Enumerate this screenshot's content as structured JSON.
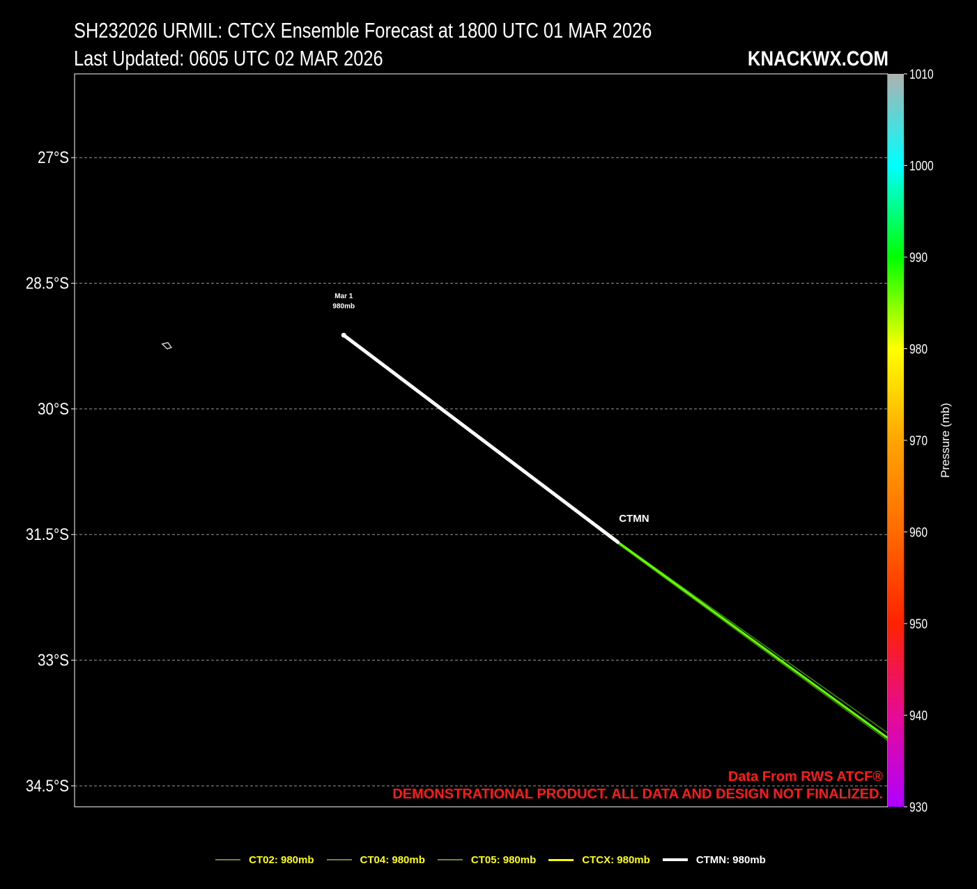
{
  "header": {
    "title_line1": "SH232026 URMIL: CTCX Ensemble Forecast at 1800 UTC 01 MAR 2026",
    "title_line2": "Last Updated: 0605 UTC 02 MAR 2026",
    "brand": "KNACKWX.COM"
  },
  "chart_data": {
    "type": "line",
    "y_axis": {
      "range": [
        -26.0,
        -34.75
      ],
      "ticks": [
        -27,
        -28.5,
        -30,
        -31.5,
        -33,
        -34.5
      ],
      "tick_labels": [
        "27°S",
        "28.5°S",
        "30°S",
        "31.5°S",
        "33°S",
        "34.5°S"
      ],
      "grid": true
    },
    "x_axis": {
      "range": [
        0,
        1
      ],
      "ticks": []
    },
    "colorbar": {
      "label": "Pressure (mb)",
      "range": [
        930,
        1010
      ],
      "ticks": [
        930,
        940,
        950,
        960,
        970,
        980,
        990,
        1000,
        1010
      ],
      "colors": [
        {
          "v": 930,
          "c": "#b000ff"
        },
        {
          "v": 940,
          "c": "#e60a96"
        },
        {
          "v": 950,
          "c": "#ff2200"
        },
        {
          "v": 960,
          "c": "#ff6a00"
        },
        {
          "v": 970,
          "c": "#ffa500"
        },
        {
          "v": 980,
          "c": "#ffff00"
        },
        {
          "v": 990,
          "c": "#00ff00"
        },
        {
          "v": 1000,
          "c": "#00ffff"
        },
        {
          "v": 1010,
          "c": "#b0b0b0"
        }
      ]
    },
    "series": [
      {
        "name": "CT02",
        "legend": "CT02: 980mb",
        "color": "#66ff00",
        "legend_color": "#808033",
        "text_color": "#ffff00",
        "width": 1.5,
        "points": [
          [
            0.331,
            -29.12
          ],
          [
            0.675,
            -31.63
          ],
          [
            1.0,
            -33.87
          ]
        ]
      },
      {
        "name": "CT04",
        "legend": "CT04: 980mb",
        "color": "#66ff00",
        "legend_color": "#808033",
        "text_color": "#ffff00",
        "width": 1.5,
        "points": [
          [
            0.331,
            -29.12
          ],
          [
            0.668,
            -31.61
          ],
          [
            1.0,
            -33.96
          ]
        ]
      },
      {
        "name": "CT05",
        "legend": "CT05: 980mb",
        "color": "#66ff00",
        "legend_color": "#808033",
        "text_color": "#ffff00",
        "width": 1.5,
        "points": [
          [
            0.331,
            -29.12
          ],
          [
            0.672,
            -31.62
          ],
          [
            1.0,
            -33.92
          ]
        ]
      },
      {
        "name": "CTCX",
        "legend": "CTCX: 980mb",
        "color": "#66ff00",
        "legend_color": "#ffff00",
        "text_color": "#ffff00",
        "width": 3,
        "points": [
          [
            0.331,
            -29.12
          ],
          [
            0.668,
            -31.59
          ],
          [
            1.0,
            -33.93
          ]
        ]
      },
      {
        "name": "CTMN",
        "legend": "CTMN: 980mb",
        "color": "#ffffff",
        "legend_color": "#ffffff",
        "text_color": "#ffffff",
        "width": 5,
        "points": [
          [
            0.331,
            -29.12
          ],
          [
            0.668,
            -31.59
          ]
        ]
      }
    ],
    "annotations": [
      {
        "text": "Mar  1",
        "x": 0.331,
        "y": -28.68
      },
      {
        "text": "980mb",
        "x": 0.331,
        "y": -28.8
      },
      {
        "text": "CTMN",
        "x": 0.688,
        "y": -31.35
      }
    ],
    "start_point": [
      0.331,
      -29.12
    ],
    "coast_glyph": [
      0.113,
      -29.25
    ],
    "credits": {
      "line1": "Data From RWS ATCF®",
      "line2": "DEMONSTRATIONAL PRODUCT. ALL DATA AND DESIGN NOT FINALIZED."
    }
  }
}
